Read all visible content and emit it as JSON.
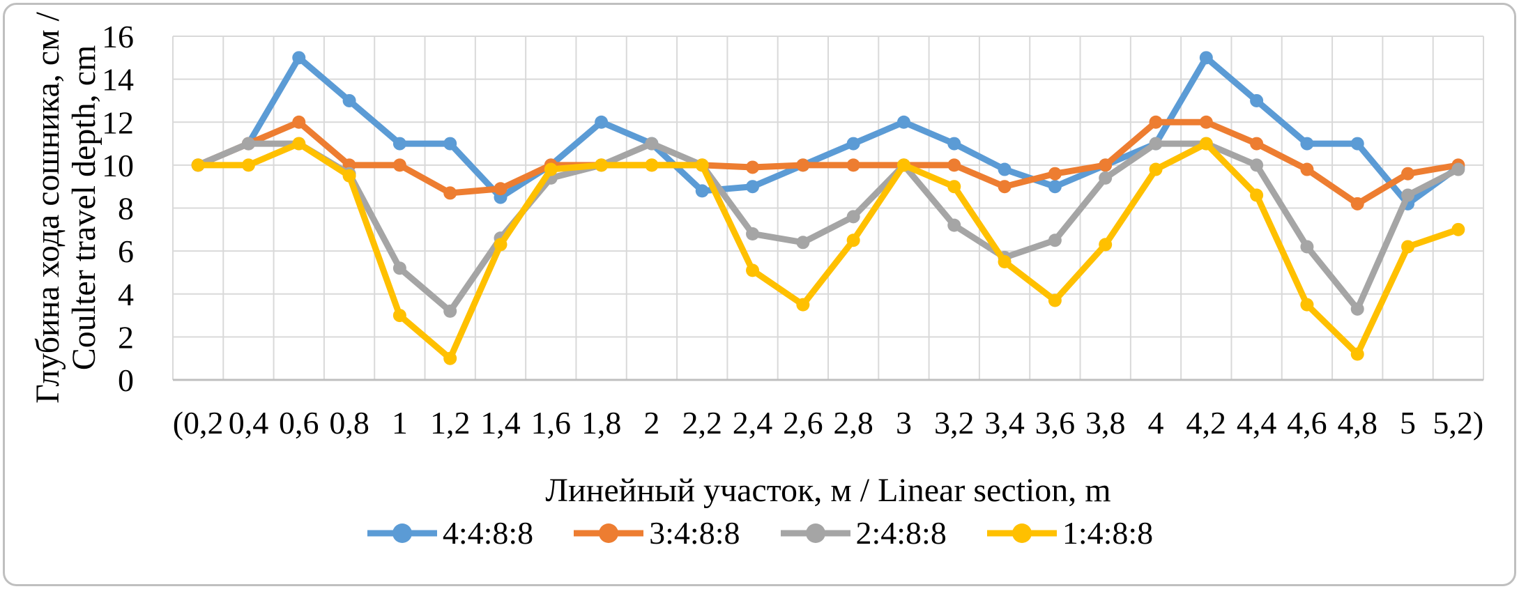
{
  "figure": {
    "background": "#FFFFFF",
    "border_color": "#BFBFBF",
    "grid_color": "#D9D9D9",
    "axis_color": "#BFBFBF",
    "text_color": "#000000"
  },
  "chart_data": {
    "type": "line",
    "title": "",
    "grid": "on",
    "legend_position": "bottom",
    "x_axis": {
      "title": "Линейный участок, м / Linear section, m",
      "categories": [
        "(0,2",
        "0,4",
        "0,6",
        "0,8",
        "1",
        "1,2",
        "1,4",
        "1,6",
        "1,8",
        "2",
        "2,2",
        "2,4",
        "2,6",
        "2,8",
        "3",
        "3,2",
        "3,4",
        "3,6",
        "3,8",
        "4",
        "4,2",
        "4,4",
        "4,6",
        "4,8",
        "5",
        "5,2)"
      ]
    },
    "y_axis": {
      "title_line1": "Глубина хода сошника, см /",
      "title_line2": "Coulter travel depth, cm",
      "min": 0,
      "max": 16,
      "tick_step": 2,
      "tick_labels": [
        "0",
        "2",
        "4",
        "6",
        "8",
        "10",
        "12",
        "14",
        "16"
      ]
    },
    "series": [
      {
        "name": "4:4:8:8",
        "color": "#5B9BD5",
        "values": [
          10,
          11,
          15,
          13,
          11,
          11,
          8.5,
          10,
          12,
          11,
          8.8,
          9,
          10,
          11,
          12,
          11,
          9.8,
          9,
          10,
          11,
          15,
          13,
          11,
          11,
          8.2,
          9.9
        ]
      },
      {
        "name": "3:4:8:8",
        "color": "#ED7D31",
        "values": [
          10,
          11,
          12,
          10,
          10,
          8.7,
          8.9,
          10,
          10,
          10,
          10,
          9.9,
          10,
          10,
          10,
          10,
          9,
          9.6,
          10,
          12,
          12,
          11,
          9.8,
          8.2,
          9.6,
          10
        ]
      },
      {
        "name": "2:4:8:8",
        "color": "#A5A5A5",
        "values": [
          10,
          11,
          11,
          9.6,
          5.2,
          3.2,
          6.6,
          9.4,
          10,
          11,
          10,
          6.8,
          6.4,
          7.6,
          10,
          7.2,
          5.7,
          6.5,
          9.4,
          11,
          11,
          10,
          6.2,
          3.3,
          8.6,
          9.8
        ]
      },
      {
        "name": "1:4:8:8",
        "color": "#FFC000",
        "values": [
          10,
          10,
          11,
          9.5,
          3,
          1,
          6.3,
          9.8,
          10,
          10,
          10,
          5.1,
          3.5,
          6.5,
          10,
          9,
          5.5,
          3.7,
          6.3,
          9.8,
          11,
          8.6,
          3.5,
          1.2,
          6.2,
          7
        ]
      }
    ]
  }
}
